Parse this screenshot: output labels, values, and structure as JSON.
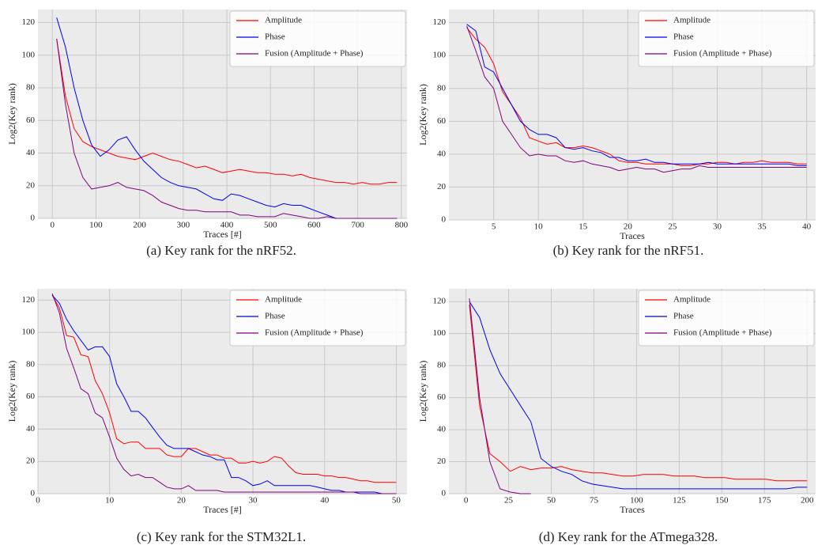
{
  "chart_data": [
    {
      "type": "line",
      "caption": "(a) Key rank for the nRF52.",
      "xlabel": "Traces [#]",
      "ylabel": "Log2(Key rank)",
      "x": [
        10,
        30,
        50,
        70,
        90,
        110,
        130,
        150,
        170,
        190,
        210,
        230,
        250,
        270,
        290,
        310,
        330,
        350,
        370,
        390,
        410,
        430,
        450,
        470,
        490,
        510,
        530,
        550,
        570,
        590,
        610,
        630,
        650,
        670,
        690,
        710,
        730,
        750,
        770,
        790
      ],
      "series": [
        {
          "name": "Amplitude",
          "color": "#ff0000",
          "values": [
            110,
            75,
            55,
            47,
            44,
            42,
            40,
            38,
            37,
            36,
            38,
            40,
            38,
            36,
            35,
            33,
            31,
            32,
            30,
            28,
            29,
            30,
            29,
            28,
            28,
            27,
            27,
            26,
            27,
            25,
            24,
            23,
            22,
            22,
            21,
            22,
            21,
            21,
            22,
            22
          ]
        },
        {
          "name": "Phase",
          "color": "#0000ee",
          "values": [
            123,
            105,
            80,
            60,
            45,
            38,
            42,
            48,
            50,
            42,
            35,
            30,
            25,
            22,
            20,
            19,
            18,
            15,
            12,
            11,
            15,
            14,
            12,
            10,
            8,
            7,
            9,
            8,
            8,
            6,
            4,
            2,
            0,
            0,
            0,
            0,
            0,
            0,
            0,
            0
          ]
        },
        {
          "name": "Fusion (Amplitude + Phase)",
          "color": "#800080",
          "values": [
            110,
            70,
            40,
            25,
            18,
            19,
            20,
            22,
            19,
            18,
            17,
            14,
            10,
            8,
            6,
            5,
            5,
            4,
            4,
            4,
            4,
            2,
            2,
            1,
            1,
            1,
            3,
            2,
            1,
            0,
            0,
            1,
            0,
            0,
            0,
            0,
            0,
            0,
            0,
            0
          ]
        }
      ],
      "xlim": [
        -33,
        813
      ],
      "ylim": [
        0,
        128
      ],
      "xticks": [
        0,
        100,
        200,
        300,
        400,
        500,
        600,
        700,
        800
      ],
      "yticks": [
        0,
        20,
        40,
        60,
        80,
        100,
        120
      ],
      "grid": true,
      "legend": "upper right"
    },
    {
      "type": "line",
      "caption": "(b) Key rank for the nRF51.",
      "xlabel": "Traces",
      "ylabel": "Log2(Key rank)",
      "x": [
        2,
        3,
        4,
        5,
        6,
        7,
        8,
        9,
        10,
        11,
        12,
        13,
        14,
        15,
        16,
        17,
        18,
        19,
        20,
        21,
        22,
        23,
        24,
        25,
        26,
        27,
        28,
        29,
        30,
        31,
        32,
        33,
        34,
        35,
        36,
        37,
        38,
        39,
        40
      ],
      "series": [
        {
          "name": "Amplitude",
          "color": "#ff0000",
          "values": [
            117,
            110,
            105,
            95,
            78,
            70,
            62,
            50,
            48,
            46,
            47,
            44,
            44,
            45,
            44,
            42,
            40,
            36,
            35,
            35,
            34,
            34,
            34,
            34,
            33,
            33,
            34,
            34,
            35,
            35,
            34,
            35,
            35,
            36,
            35,
            35,
            35,
            34,
            34
          ]
        },
        {
          "name": "Phase",
          "color": "#0000ee",
          "values": [
            119,
            115,
            93,
            90,
            80,
            70,
            60,
            55,
            52,
            52,
            50,
            44,
            43,
            44,
            42,
            41,
            38,
            38,
            36,
            36,
            37,
            35,
            35,
            34,
            34,
            34,
            34,
            35,
            34,
            34,
            34,
            34,
            34,
            34,
            34,
            34,
            34,
            33,
            33
          ]
        },
        {
          "name": "Fusion (Amplitude + Phase)",
          "color": "#800080",
          "values": [
            118,
            103,
            87,
            80,
            60,
            52,
            44,
            39,
            40,
            39,
            39,
            36,
            35,
            36,
            34,
            33,
            32,
            30,
            31,
            32,
            31,
            31,
            29,
            30,
            31,
            31,
            33,
            32,
            32,
            32,
            32,
            32,
            32,
            32,
            32,
            32,
            32,
            32,
            32
          ]
        }
      ],
      "xlim": [
        0,
        41
      ],
      "ylim": [
        0,
        128
      ],
      "xticks": [
        5,
        10,
        15,
        20,
        25,
        30,
        35,
        40
      ],
      "yticks": [
        0,
        20,
        40,
        60,
        80,
        100,
        120
      ],
      "grid": true,
      "legend": "upper right"
    },
    {
      "type": "line",
      "caption": "(c) Key rank for the STM32L1.",
      "xlabel": "Traces [#]",
      "ylabel": "Log2(Key rank)",
      "x": [
        2,
        3,
        4,
        5,
        6,
        7,
        8,
        9,
        10,
        11,
        12,
        13,
        14,
        15,
        16,
        17,
        18,
        19,
        20,
        21,
        22,
        23,
        24,
        25,
        26,
        27,
        28,
        29,
        30,
        31,
        32,
        33,
        34,
        35,
        36,
        37,
        38,
        39,
        40,
        41,
        42,
        43,
        44,
        45,
        46,
        47,
        48,
        49,
        50
      ],
      "series": [
        {
          "name": "Amplitude",
          "color": "#ff0000",
          "values": [
            123,
            115,
            98,
            97,
            86,
            85,
            70,
            62,
            50,
            34,
            31,
            32,
            32,
            28,
            28,
            28,
            24,
            23,
            23,
            28,
            28,
            26,
            24,
            24,
            22,
            22,
            19,
            19,
            20,
            19,
            20,
            23,
            22,
            17,
            13,
            12,
            12,
            12,
            11,
            11,
            10,
            10,
            9,
            8,
            8,
            7,
            7,
            7,
            7
          ]
        },
        {
          "name": "Phase",
          "color": "#0000ee",
          "values": [
            123,
            118,
            108,
            101,
            95,
            89,
            91,
            91,
            85,
            68,
            60,
            51,
            51,
            47,
            41,
            35,
            30,
            28,
            28,
            28,
            26,
            24,
            23,
            21,
            21,
            10,
            10,
            8,
            5,
            6,
            8,
            5,
            5,
            5,
            5,
            5,
            5,
            4,
            3,
            2,
            2,
            1,
            1,
            1,
            1,
            1,
            0,
            0,
            0
          ]
        },
        {
          "name": "Fusion (Amplitude + Phase)",
          "color": "#800080",
          "values": [
            124,
            112,
            90,
            78,
            65,
            62,
            50,
            47,
            35,
            22,
            15,
            11,
            12,
            10,
            10,
            7,
            4,
            3,
            3,
            5,
            2,
            2,
            2,
            2,
            1,
            1,
            1,
            1,
            1,
            1,
            1,
            1,
            1,
            1,
            1,
            1,
            1,
            1,
            1,
            1,
            1,
            1,
            1,
            0,
            0,
            0,
            0,
            0,
            0
          ]
        }
      ],
      "xlim": [
        0,
        51.5
      ],
      "ylim": [
        0,
        127
      ],
      "xticks": [
        0,
        10,
        20,
        30,
        40,
        50
      ],
      "yticks": [
        0,
        20,
        40,
        60,
        80,
        100,
        120
      ],
      "grid": true,
      "legend": "upper right"
    },
    {
      "type": "line",
      "caption": "(d) Key rank for the ATmega328.",
      "xlabel": "Traces",
      "ylabel": "Log2(Key rank)",
      "x": [
        2,
        8,
        14,
        20,
        26,
        32,
        38,
        44,
        50,
        56,
        62,
        68,
        74,
        80,
        86,
        92,
        98,
        104,
        110,
        116,
        122,
        128,
        134,
        140,
        146,
        152,
        158,
        164,
        170,
        176,
        182,
        188,
        194,
        200
      ],
      "series": [
        {
          "name": "Amplitude",
          "color": "#ff0000",
          "values": [
            118,
            55,
            25,
            20,
            14,
            17,
            15,
            16,
            16,
            17,
            15,
            14,
            13,
            13,
            12,
            11,
            11,
            12,
            12,
            12,
            11,
            11,
            11,
            10,
            10,
            10,
            9,
            9,
            9,
            9,
            8,
            8,
            8,
            8
          ]
        },
        {
          "name": "Phase",
          "color": "#0000ee",
          "values": [
            120,
            110,
            90,
            75,
            65,
            55,
            45,
            22,
            17,
            14,
            12,
            8,
            6,
            5,
            4,
            3,
            3,
            3,
            3,
            3,
            3,
            3,
            3,
            3,
            3,
            3,
            3,
            3,
            3,
            3,
            3,
            3,
            4,
            4
          ]
        },
        {
          "name": "Fusion (Amplitude + Phase)",
          "color": "#800080",
          "values": [
            122,
            60,
            20,
            3,
            1,
            0,
            0,
            null,
            null,
            null,
            null,
            null,
            null,
            null,
            null,
            null,
            null,
            null,
            null,
            null,
            null,
            null,
            null,
            null,
            null,
            null,
            null,
            null,
            null,
            null,
            null,
            null,
            null,
            null
          ]
        }
      ],
      "xlim": [
        -10,
        205
      ],
      "ylim": [
        0,
        128
      ],
      "xticks": [
        0,
        25,
        50,
        75,
        100,
        125,
        150,
        175,
        200
      ],
      "yticks": [
        0,
        20,
        40,
        60,
        80,
        100,
        120
      ],
      "grid": true,
      "legend": "upper right"
    }
  ]
}
